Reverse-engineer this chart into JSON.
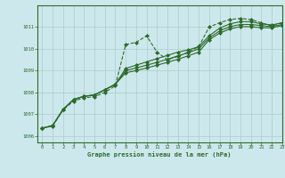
{
  "title": "Graphe pression niveau de la mer (hPa)",
  "background_color": "#cde8ec",
  "grid_color": "#aacccc",
  "line_color": "#2d6a2d",
  "xlim": [
    -0.5,
    23
  ],
  "ylim": [
    1005.7,
    1012.0
  ],
  "yticks": [
    1006,
    1007,
    1008,
    1009,
    1010,
    1011
  ],
  "xticks": [
    0,
    1,
    2,
    3,
    4,
    5,
    6,
    7,
    8,
    9,
    10,
    11,
    12,
    13,
    14,
    15,
    16,
    17,
    18,
    19,
    20,
    21,
    22,
    23
  ],
  "series": [
    {
      "x": [
        0,
        1,
        2,
        3,
        4,
        5,
        6,
        7,
        8,
        9,
        10,
        11,
        12,
        13,
        14,
        15,
        16,
        17,
        18,
        19,
        20,
        21,
        22,
        23
      ],
      "y": [
        1006.35,
        1006.45,
        1007.2,
        1007.6,
        1007.75,
        1007.8,
        1008.0,
        1008.3,
        1010.2,
        1010.3,
        1010.6,
        1009.85,
        1009.5,
        1009.65,
        1009.85,
        1010.1,
        1011.0,
        1011.2,
        1011.35,
        1011.4,
        1011.35,
        1011.2,
        1011.05,
        1011.2
      ],
      "marker": "D",
      "linestyle": "--",
      "linewidth": 0.8,
      "markersize": 2.0
    },
    {
      "x": [
        0,
        1,
        2,
        3,
        4,
        5,
        6,
        7,
        8,
        9,
        10,
        11,
        12,
        13,
        14,
        15,
        16,
        17,
        18,
        19,
        20,
        21,
        22,
        23
      ],
      "y": [
        1006.35,
        1006.48,
        1007.22,
        1007.67,
        1007.82,
        1007.88,
        1008.12,
        1008.37,
        1009.1,
        1009.25,
        1009.4,
        1009.55,
        1009.7,
        1009.85,
        1009.95,
        1010.1,
        1010.6,
        1010.95,
        1011.15,
        1011.25,
        1011.25,
        1011.15,
        1011.1,
        1011.2
      ],
      "marker": "D",
      "linestyle": "-",
      "linewidth": 0.8,
      "markersize": 2.0
    },
    {
      "x": [
        0,
        1,
        2,
        3,
        4,
        5,
        6,
        7,
        8,
        9,
        10,
        11,
        12,
        13,
        14,
        15,
        16,
        17,
        18,
        19,
        20,
        21,
        22,
        23
      ],
      "y": [
        1006.35,
        1006.48,
        1007.22,
        1007.67,
        1007.82,
        1007.88,
        1008.12,
        1008.37,
        1009.0,
        1009.12,
        1009.25,
        1009.38,
        1009.52,
        1009.68,
        1009.82,
        1010.0,
        1010.5,
        1010.82,
        1011.02,
        1011.12,
        1011.12,
        1011.07,
        1011.02,
        1011.12
      ],
      "marker": "D",
      "linestyle": "-",
      "linewidth": 0.8,
      "markersize": 2.0
    },
    {
      "x": [
        0,
        1,
        2,
        3,
        4,
        5,
        6,
        7,
        8,
        9,
        10,
        11,
        12,
        13,
        14,
        15,
        16,
        17,
        18,
        19,
        20,
        21,
        22,
        23
      ],
      "y": [
        1006.35,
        1006.48,
        1007.22,
        1007.67,
        1007.82,
        1007.88,
        1008.12,
        1008.37,
        1008.9,
        1009.0,
        1009.12,
        1009.25,
        1009.38,
        1009.52,
        1009.68,
        1009.85,
        1010.42,
        1010.72,
        1010.92,
        1011.02,
        1011.02,
        1010.97,
        1010.97,
        1011.07
      ],
      "marker": "D",
      "linestyle": "-",
      "linewidth": 0.8,
      "markersize": 2.0
    }
  ]
}
